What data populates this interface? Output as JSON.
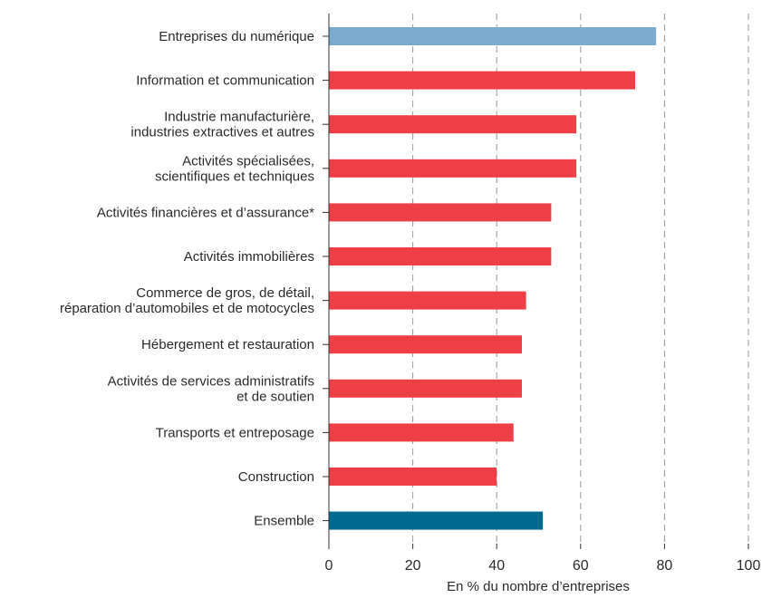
{
  "chart_data": {
    "type": "bar",
    "orientation": "horizontal",
    "xlabel": "En % du nombre d’entreprises",
    "xlim": [
      0,
      100
    ],
    "xticks": [
      0,
      20,
      40,
      60,
      80,
      100
    ],
    "grid": "vertical dashed",
    "categories": [
      [
        "Entreprises du numérique"
      ],
      [
        "Information et communication"
      ],
      [
        "Industrie manufacturière,",
        "industries extractives et autres"
      ],
      [
        "Activités spécialisées,",
        "scientifiques et techniques"
      ],
      [
        "Activités financières et d’assurance*"
      ],
      [
        "Activités immobilières"
      ],
      [
        "Commerce de gros, de détail,",
        "réparation d’automobiles et de motocycles"
      ],
      [
        "Hébergement et restauration"
      ],
      [
        "Activités de services administratifs",
        "et de soutien"
      ],
      [
        "Transports et entreposage"
      ],
      [
        "Construction"
      ],
      [
        "Ensemble"
      ]
    ],
    "values": [
      78,
      73,
      59,
      59,
      53,
      53,
      47,
      46,
      46,
      44,
      40,
      51
    ],
    "colors": [
      "#7aaace",
      "#ee3e46",
      "#ee3e46",
      "#ee3e46",
      "#ee3e46",
      "#ee3e46",
      "#ee3e46",
      "#ee3e46",
      "#ee3e46",
      "#ee3e46",
      "#ee3e46",
      "#006a8e"
    ]
  }
}
